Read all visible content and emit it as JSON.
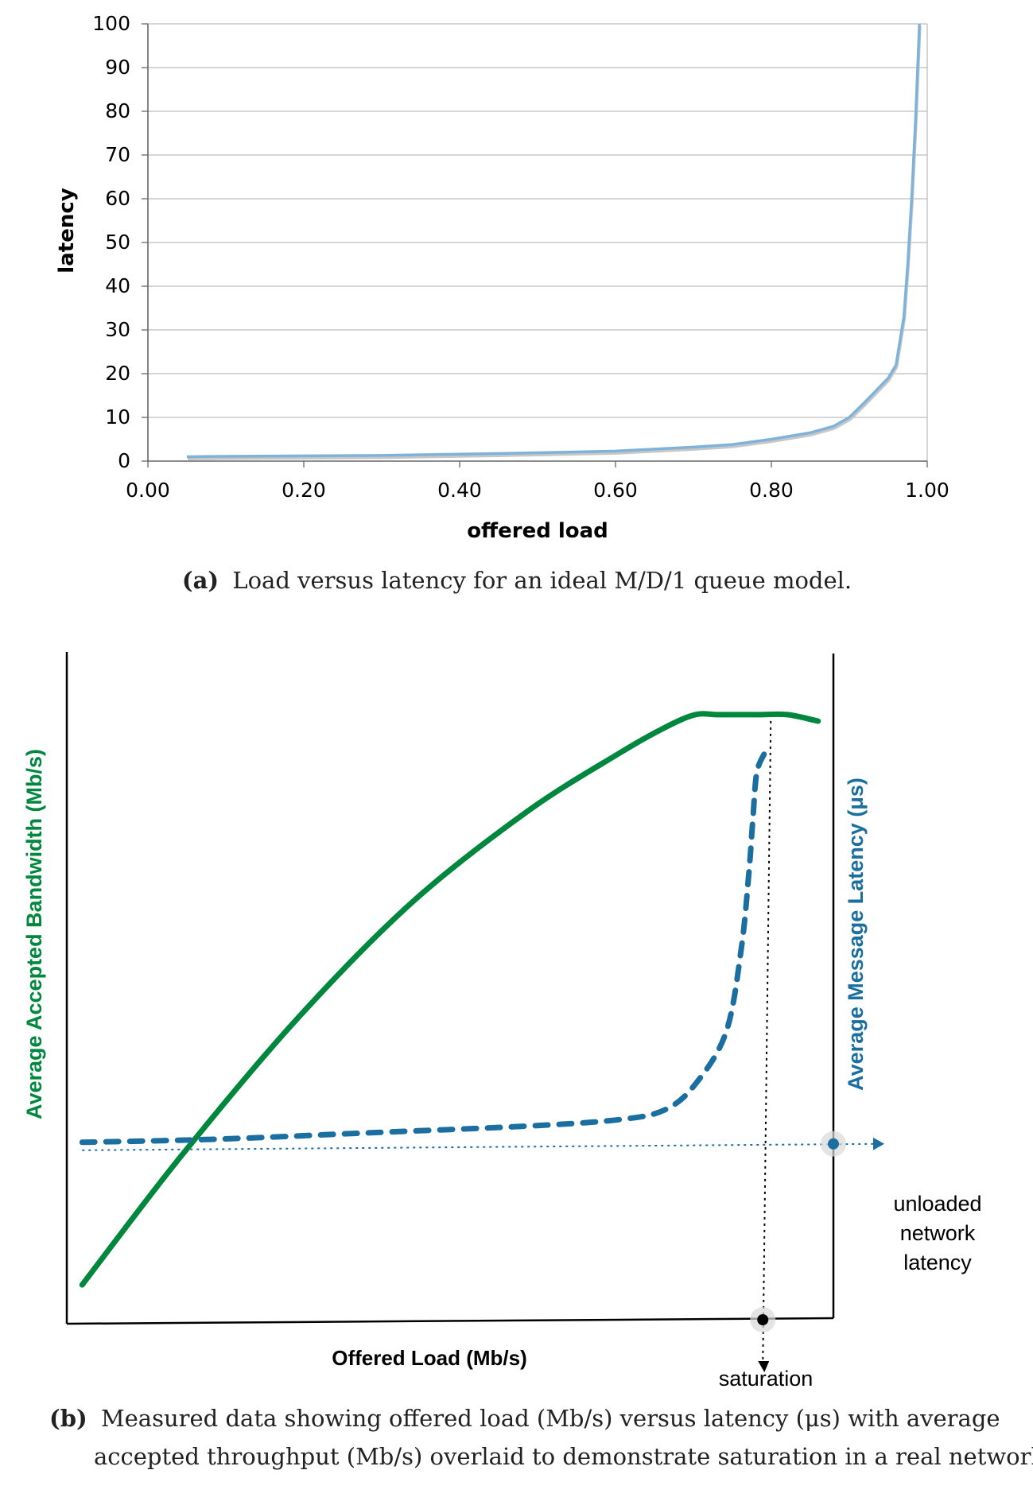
{
  "chart_data": [
    {
      "type": "line",
      "title": "",
      "xlabel": "offered load",
      "ylabel": "latency",
      "xlim": [
        0.0,
        1.0
      ],
      "ylim": [
        0,
        100
      ],
      "x_ticks": [
        "0.00",
        "0.20",
        "0.40",
        "0.60",
        "0.80",
        "1.00"
      ],
      "y_ticks": [
        "0",
        "10",
        "20",
        "30",
        "40",
        "50",
        "60",
        "70",
        "80",
        "90",
        "100"
      ],
      "grid": true,
      "legend": "none",
      "caption_bold": "(a)",
      "caption_text": "Load versus latency for an ideal M/D/1 queue model.",
      "colors": {
        "line": "#7fb2da",
        "shadow": "#c7c7c7",
        "grid": "#bdbdbd",
        "axis": "#666666"
      },
      "series": [
        {
          "x": [
            0.05,
            0.1,
            0.2,
            0.3,
            0.4,
            0.5,
            0.6,
            0.7,
            0.75,
            0.8,
            0.85,
            0.88,
            0.9,
            0.92,
            0.95,
            0.96,
            0.97,
            0.975,
            0.98,
            0.985,
            0.99
          ],
          "y": [
            1.0,
            1.1,
            1.2,
            1.3,
            1.6,
            1.9,
            2.3,
            3.2,
            3.8,
            5.0,
            6.5,
            8.0,
            10.0,
            13.5,
            19.0,
            22.0,
            33.0,
            45.0,
            60.0,
            78.0,
            100.0
          ]
        }
      ]
    },
    {
      "type": "line",
      "title": "",
      "xlabel": "Offered Load (Mb/s)",
      "ylabel_left": "Average Accepted Bandwidth (Mb/s)",
      "ylabel_right": "Average Message Latency (μs)",
      "annotations": {
        "unloaded": [
          "unloaded",
          "network",
          "latency"
        ],
        "saturation": "saturation"
      },
      "caption_bold": "(b)",
      "caption_line1": "Measured data showing offered load (Mb/s) versus latency (μs) with average",
      "caption_line2": "accepted throughput (Mb/s) overlaid to demonstrate saturation in a real network.",
      "colors": {
        "bandwidth": "#00873e",
        "latency": "#1a6fa0",
        "axis": "#000000"
      },
      "xlim": [
        0,
        100
      ],
      "ylim": [
        0,
        100
      ],
      "series": [
        {
          "role": "bandwidth",
          "x": [
            2,
            15,
            30,
            45,
            60,
            72,
            78,
            82,
            85,
            90,
            94,
            98
          ],
          "y": [
            6,
            26,
            47,
            65,
            79,
            88,
            92,
            94,
            94,
            94,
            94,
            93
          ]
        },
        {
          "role": "latency",
          "x": [
            2,
            20,
            40,
            60,
            72,
            78,
            82,
            86,
            88,
            89,
            89.5,
            90,
            91
          ],
          "y": [
            28,
            28.5,
            29.5,
            30.5,
            31.5,
            33,
            37,
            45,
            58,
            70,
            78,
            85,
            88
          ]
        }
      ],
      "unloaded_latency": 28,
      "saturation_load": 91
    }
  ]
}
